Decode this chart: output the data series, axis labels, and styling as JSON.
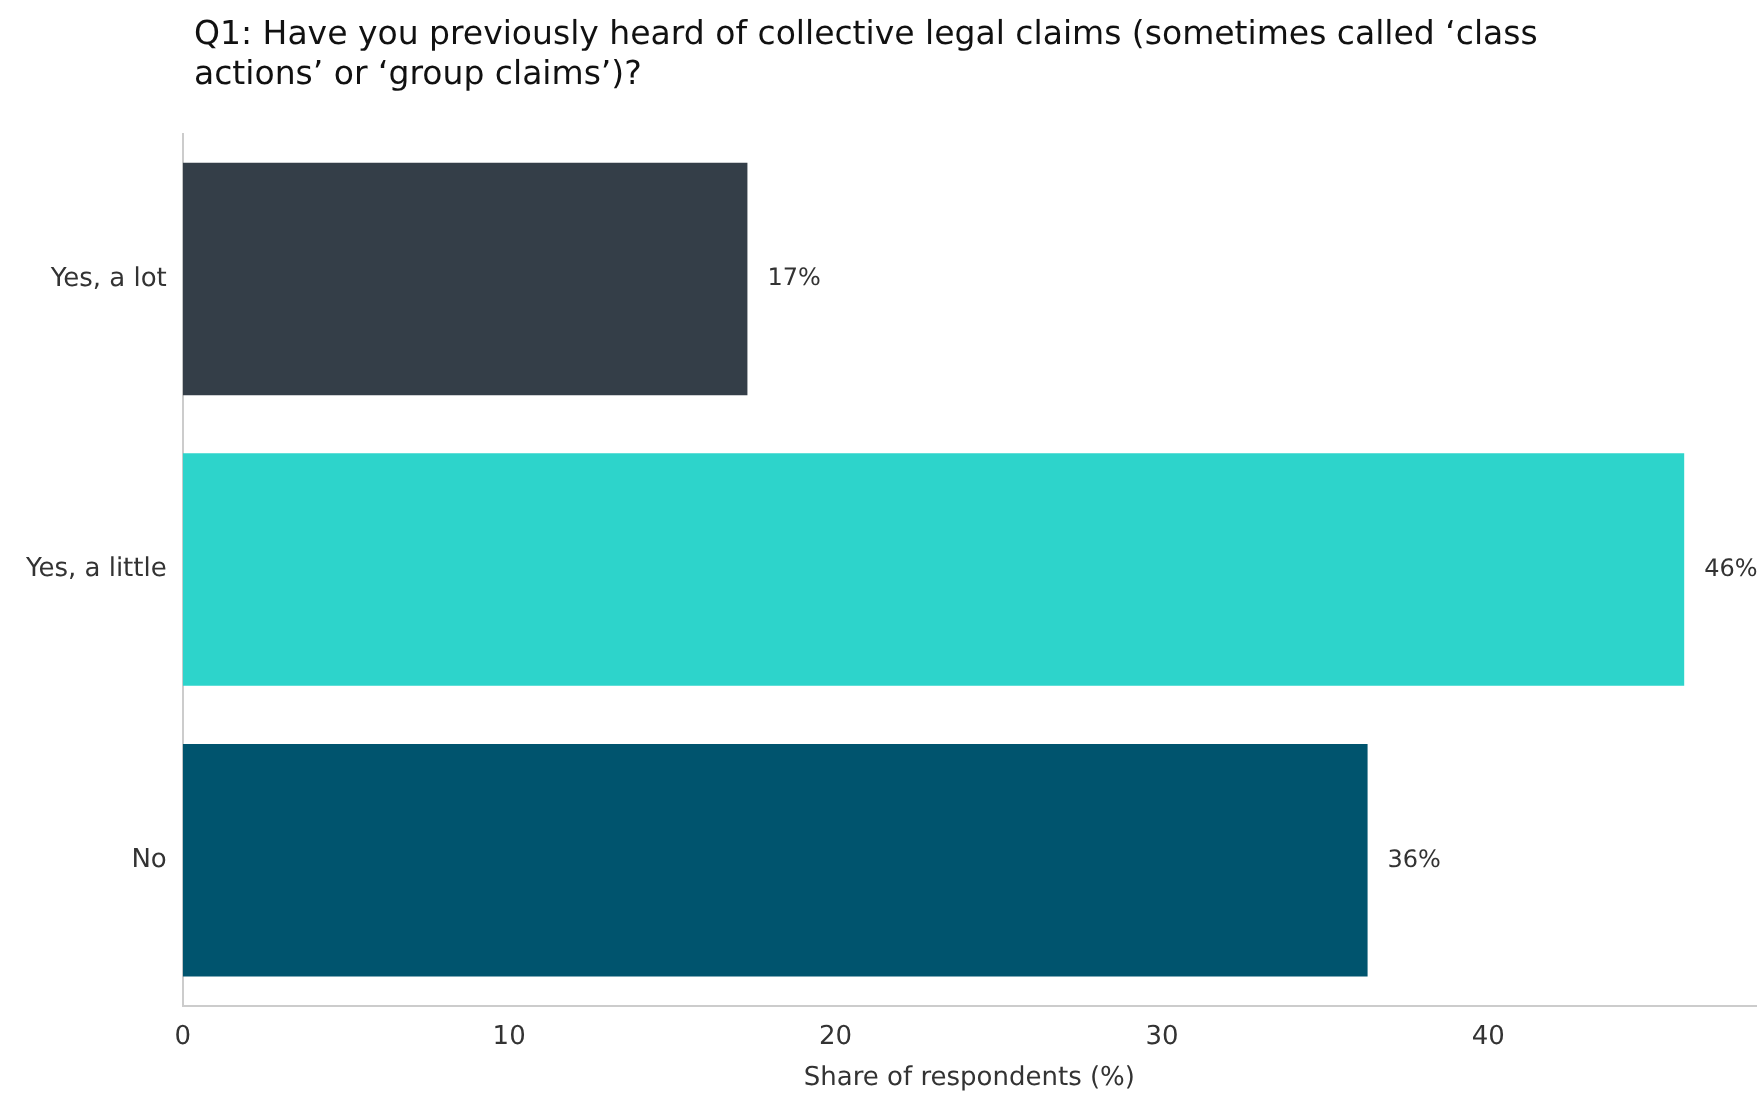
{
  "chart_data": {
    "type": "bar",
    "orientation": "horizontal",
    "title": "Q1: Have you previously heard of collective legal claims (sometimes called ‘class actions’ or ‘group claims’)?",
    "categories": [
      "Yes, a lot",
      "Yes, a little",
      "No"
    ],
    "values": [
      17.3,
      46.0,
      36.3
    ],
    "colors": [
      "#343e48",
      "#2dd4cb",
      "#00546e"
    ],
    "value_labels": [
      "17%",
      "46%",
      "36%"
    ],
    "xlabel": "Share of respondents (%)",
    "xlim": [
      0,
      48.2
    ],
    "xticks": [
      0,
      10,
      20,
      30,
      40
    ],
    "grid": false,
    "legend": false
  }
}
